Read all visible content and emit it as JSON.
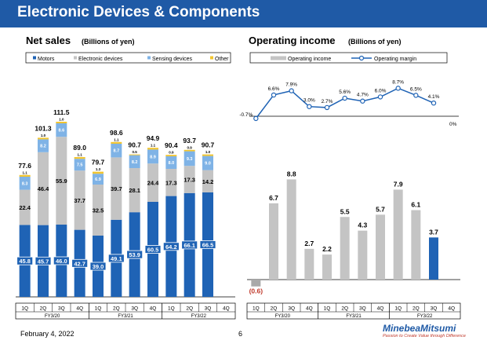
{
  "header": {
    "title": "Electronic Devices & Components"
  },
  "footer": {
    "date": "February 4, 2022",
    "page": "6"
  },
  "logo": {
    "name": "MinebeaMitsumi",
    "tagline": "Passion to Create Value through Difference"
  },
  "colors": {
    "banner": "#1f5aa6",
    "motors": "#1f63b5",
    "electronic": "#c4c4c4",
    "sensing": "#7fb3e6",
    "other": "#f2c530",
    "op_bar": "#c4c4c4",
    "op_bar_highlight": "#1f63b5",
    "op_bar_negative": "#a9a9a9",
    "margin_line": "#1f63b5"
  },
  "chart_data": [
    {
      "type": "bar",
      "stacked": true,
      "title": "Net sales",
      "title_unit": "(Billions of yen)",
      "legend": [
        "Motors",
        "Electronic devices",
        "Sensing devices",
        "Other"
      ],
      "legend_position": "top",
      "categories": [
        "1Q",
        "2Q",
        "3Q",
        "4Q",
        "1Q",
        "2Q",
        "3Q",
        "4Q",
        "1Q",
        "2Q",
        "3Q",
        "4Q"
      ],
      "groups": [
        {
          "label": "FY3/20",
          "span": 4
        },
        {
          "label": "FY3/21",
          "span": 4
        },
        {
          "label": "FY3/22",
          "span": 4
        }
      ],
      "series": [
        {
          "name": "Motors",
          "values": [
            45.8,
            45.7,
            46.0,
            42.7,
            39.0,
            49.1,
            53.9,
            60.5,
            64.2,
            66.1,
            66.5,
            null
          ],
          "labels": [
            "45.8",
            "45.7",
            "46.0",
            "42.7",
            "39.0",
            "49.1",
            "53.9",
            "60.5",
            "64.2",
            "66.1",
            "66.5",
            ""
          ]
        },
        {
          "name": "Electronic devices",
          "values": [
            22.4,
            46.4,
            55.9,
            37.7,
            32.5,
            39.7,
            28.1,
            24.4,
            17.3,
            17.3,
            14.2,
            null
          ],
          "labels": [
            "22.4",
            "46.4",
            "55.9",
            "37.7",
            "32.5",
            "39.7",
            "28.1",
            "24.4",
            "17.3",
            "17.3",
            "14.2",
            ""
          ]
        },
        {
          "name": "Sensing devices",
          "values": [
            8.3,
            8.2,
            8.6,
            7.5,
            6.9,
            8.7,
            8.2,
            8.9,
            8.0,
            9.3,
            9.0,
            null
          ],
          "labels": [
            "8.3",
            "8.2",
            "8.6",
            "7.5",
            "6.9",
            "8.7",
            "8.2",
            "8.9",
            "8.0",
            "9.3",
            "9.0",
            ""
          ]
        },
        {
          "name": "Other",
          "values": [
            1.1,
            1.0,
            1.0,
            1.1,
            1.3,
            1.1,
            0.5,
            1.1,
            0.9,
            0.9,
            1.0,
            null
          ],
          "labels": [
            "1.1",
            "1.0",
            "1.0",
            "1.1",
            "1.3",
            "1.1",
            "0.5",
            "1.1",
            "0.9",
            "0.9",
            "1.0",
            ""
          ]
        }
      ],
      "totals": [
        "77.6",
        "101.3",
        "111.5",
        "89.0",
        "79.7",
        "98.6",
        "90.7",
        "94.9",
        "90.4",
        "93.7",
        "90.7",
        ""
      ],
      "ylim": [
        0,
        115
      ]
    },
    {
      "type": "bar",
      "title": "Operating income",
      "title_unit": "(Billions of yen)",
      "legend": [
        "Operating income",
        "Operating margin"
      ],
      "legend_position": "top",
      "categories": [
        "1Q",
        "2Q",
        "3Q",
        "4Q",
        "1Q",
        "2Q",
        "3Q",
        "4Q",
        "1Q",
        "2Q",
        "3Q",
        "4Q"
      ],
      "groups": [
        {
          "label": "FY3/20",
          "span": 4
        },
        {
          "label": "FY3/21",
          "span": 4
        },
        {
          "label": "FY3/22",
          "span": 4
        }
      ],
      "operating_income": {
        "values": [
          -0.6,
          6.7,
          8.8,
          2.7,
          2.2,
          5.5,
          4.3,
          5.7,
          7.9,
          6.1,
          3.7,
          null
        ],
        "labels": [
          "(0.6)",
          "6.7",
          "8.8",
          "2.7",
          "2.2",
          "5.5",
          "4.3",
          "5.7",
          "7.9",
          "6.1",
          "3.7",
          ""
        ],
        "ylim": [
          -0.8,
          10
        ]
      },
      "operating_margin": {
        "type": "line",
        "values": [
          -0.7,
          6.6,
          7.9,
          3.0,
          2.7,
          5.6,
          4.7,
          6.0,
          8.7,
          6.5,
          4.1,
          null
        ],
        "labels": [
          "-0.7%",
          "6.6%",
          "7.9%",
          "3.0%",
          "2.7%",
          "5.6%",
          "4.7%",
          "6.0%",
          "8.7%",
          "6.5%",
          "4.1%",
          ""
        ],
        "zero_label": "0%",
        "ylim": [
          -2,
          10
        ]
      }
    }
  ]
}
